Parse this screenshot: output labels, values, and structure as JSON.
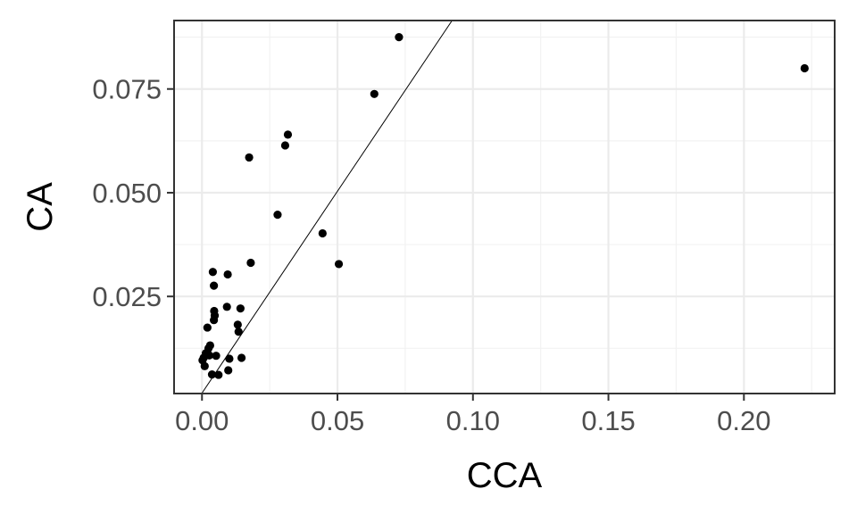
{
  "chart_data": {
    "type": "scatter",
    "xlabel": "CCA",
    "ylabel": "CA",
    "xlim": [
      -0.0103,
      0.2335
    ],
    "ylim": [
      0.0016,
      0.0915
    ],
    "x_ticks": [
      0.0,
      0.05,
      0.1,
      0.15,
      0.2
    ],
    "x_tick_labels": [
      "0.00",
      "0.05",
      "0.10",
      "0.15",
      "0.20"
    ],
    "y_ticks": [
      0.025,
      0.05,
      0.075
    ],
    "y_tick_labels": [
      "0.025",
      "0.050",
      "0.075"
    ],
    "grid": true,
    "legend": "none",
    "point_color": "#000000",
    "reference_line": {
      "slope": 0.973,
      "intercept": 0.0017,
      "color": "#000000"
    },
    "points": [
      {
        "x": 0.0727,
        "y": 0.0875
      },
      {
        "x": 0.2224,
        "y": 0.08
      },
      {
        "x": 0.0636,
        "y": 0.0738
      },
      {
        "x": 0.0317,
        "y": 0.064
      },
      {
        "x": 0.0307,
        "y": 0.0614
      },
      {
        "x": 0.0174,
        "y": 0.0585
      },
      {
        "x": 0.0279,
        "y": 0.0447
      },
      {
        "x": 0.0445,
        "y": 0.0402
      },
      {
        "x": 0.0505,
        "y": 0.0328
      },
      {
        "x": 0.018,
        "y": 0.0331
      },
      {
        "x": 0.004,
        "y": 0.0309
      },
      {
        "x": 0.0095,
        "y": 0.0303
      },
      {
        "x": 0.0044,
        "y": 0.0276
      },
      {
        "x": 0.0045,
        "y": 0.0215
      },
      {
        "x": 0.0047,
        "y": 0.0204
      },
      {
        "x": 0.0044,
        "y": 0.0193
      },
      {
        "x": 0.0092,
        "y": 0.0225
      },
      {
        "x": 0.0142,
        "y": 0.0221
      },
      {
        "x": 0.0132,
        "y": 0.0182
      },
      {
        "x": 0.0135,
        "y": 0.0165
      },
      {
        "x": 0.002,
        "y": 0.0175
      },
      {
        "x": 0.003,
        "y": 0.0132
      },
      {
        "x": 0.0024,
        "y": 0.0125
      },
      {
        "x": 0.0014,
        "y": 0.0113
      },
      {
        "x": 0.0027,
        "y": 0.0108
      },
      {
        "x": 0.0052,
        "y": 0.0107
      },
      {
        "x": 0.0006,
        "y": 0.0102
      },
      {
        "x": 0.0002,
        "y": 0.0096
      },
      {
        "x": 0.001,
        "y": 0.0082
      },
      {
        "x": 0.0101,
        "y": 0.01
      },
      {
        "x": 0.0146,
        "y": 0.0102
      },
      {
        "x": 0.0097,
        "y": 0.0072
      },
      {
        "x": 0.0037,
        "y": 0.0062
      },
      {
        "x": 0.0061,
        "y": 0.0061
      }
    ]
  }
}
